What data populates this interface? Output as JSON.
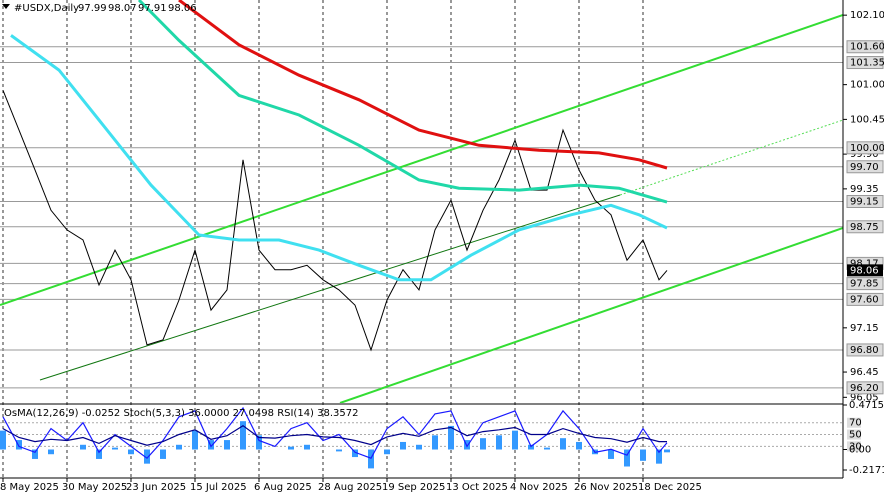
{
  "chart_data": [
    {
      "type": "line",
      "title": "#USDX,Daily",
      "ohlc": [
        97.99,
        98.07,
        97.91,
        98.06
      ],
      "xlim": [
        -0.75,
        210
      ],
      "ylim": [
        95.96,
        102.34
      ],
      "xticks": [
        {
          "value": 0,
          "label": "8 May 2025"
        },
        {
          "value": 16,
          "label": "30 May 2025"
        },
        {
          "value": 32,
          "label": "23 Jun 2025"
        },
        {
          "value": 48,
          "label": "15 Jul 2025"
        },
        {
          "value": 64,
          "label": "6 Aug 2025"
        },
        {
          "value": 80,
          "label": "28 Aug 2025"
        },
        {
          "value": 96,
          "label": "19 Sep 2025"
        },
        {
          "value": 112,
          "label": "13 Oct 2025"
        },
        {
          "value": 128,
          "label": "4 Nov 2025"
        },
        {
          "value": 144,
          "label": "26 Nov 2025"
        },
        {
          "value": 160,
          "label": "18 Dec 2025"
        }
      ],
      "yticks": [
        {
          "value": 102.1,
          "label": "102.10"
        },
        {
          "value": 101,
          "label": "101.00"
        },
        100.45,
        {
          "value": 99.9,
          "label": "99.90"
        },
        99.35,
        97.15,
        96.45,
        96.05
      ],
      "levels": [
        {
          "value": 101.6,
          "label": "101.60"
        },
        101.35,
        {
          "value": 100,
          "label": "100.00"
        },
        {
          "value": 99.7,
          "label": "99.70"
        },
        99.15,
        98.75,
        98.17,
        97.85,
        {
          "value": 97.6,
          "label": "97.60"
        },
        {
          "value": 96.8,
          "label": "96.80"
        },
        {
          "value": 96.2,
          "label": "96.20"
        }
      ],
      "last": 98.06,
      "series": [
        {
          "color": "#000000",
          "x": [
            0,
            4,
            8,
            12,
            16,
            20,
            24,
            28,
            32,
            36,
            40,
            44,
            48,
            52,
            56,
            60,
            64,
            68,
            72,
            76,
            80,
            84,
            88,
            92,
            96,
            100,
            104,
            108,
            112,
            116,
            120,
            124,
            128,
            132,
            136,
            140,
            144,
            148,
            152,
            156,
            160,
            164,
            166
          ],
          "values": [
            100.91,
            100.28,
            99.65,
            99.01,
            98.7,
            98.54,
            97.83,
            98.38,
            97.91,
            96.88,
            96.96,
            97.59,
            98.38,
            97.43,
            97.75,
            99.81,
            98.38,
            98.07,
            98.07,
            98.14,
            97.91,
            97.75,
            97.51,
            96.8,
            97.59,
            98.07,
            97.75,
            98.7,
            99.17,
            98.38,
            99.01,
            99.49,
            100.12,
            99.33,
            99.33,
            100.28,
            99.65,
            99.17,
            98.94,
            98.22,
            98.54,
            97.91,
            98.06
          ]
        },
        {
          "color": "#e01010",
          "x": [
            44,
            59,
            74,
            89,
            104,
            119,
            134,
            149,
            159,
            166
          ],
          "values": [
            102.34,
            101.63,
            101.15,
            100.76,
            100.28,
            100.04,
            99.96,
            99.92,
            99.81,
            99.68
          ]
        },
        {
          "color": "#20d8a8",
          "x": [
            34,
            44,
            59,
            74,
            89,
            104,
            114,
            129,
            144,
            154,
            166
          ],
          "values": [
            102.34,
            101.7,
            100.83,
            100.52,
            100.04,
            99.49,
            99.36,
            99.33,
            99.41,
            99.36,
            99.14
          ]
        },
        {
          "color": "#40e0f0",
          "x": [
            2,
            14,
            24,
            37,
            49,
            59,
            69,
            79,
            89,
            99,
            107,
            117,
            129,
            142,
            152,
            159,
            166
          ],
          "values": [
            101.78,
            101.23,
            100.44,
            99.41,
            98.62,
            98.54,
            98.54,
            98.38,
            98.14,
            97.91,
            97.91,
            98.3,
            98.7,
            98.94,
            99.09,
            98.94,
            98.73
          ]
        }
      ]
    },
    {
      "type": "oscillator",
      "title": "OsMA(12,26,9) -0.0252 Stoch(5,3,3) 36.0000 27.0498 RSI(14) 38.3572",
      "ylim": [
        -10,
        100
      ],
      "y2lim": [
        -0.2171,
        0.4715
      ],
      "yticks": [
        30,
        50,
        70
      ],
      "y2ticks": [
        0.4715,
        {
          "value": 0,
          "label": "0.00"
        },
        -0.2171
      ],
      "x": [
        0,
        4,
        8,
        12,
        16,
        20,
        24,
        28,
        32,
        36,
        40,
        44,
        48,
        52,
        56,
        60,
        64,
        68,
        72,
        76,
        80,
        84,
        88,
        92,
        96,
        100,
        104,
        108,
        112,
        116,
        120,
        124,
        128,
        132,
        136,
        140,
        144,
        148,
        152,
        156,
        160,
        164,
        166
      ],
      "series": [
        {
          "type": "histogram",
          "axis": "y2",
          "color": "#3399ff",
          "values": [
            0.2,
            0.1,
            -0.1,
            -0.05,
            0,
            0.05,
            -0.1,
            0.02,
            -0.05,
            -0.15,
            -0.1,
            0.05,
            0.2,
            0.1,
            0.1,
            0.3,
            0.15,
            0,
            0.03,
            0.05,
            0,
            -0.02,
            -0.08,
            -0.2,
            -0.05,
            0.08,
            0.05,
            0.15,
            0.25,
            0.1,
            0.12,
            0.15,
            0.2,
            0.05,
            0.02,
            0.12,
            0.08,
            -0.05,
            -0.1,
            -0.18,
            -0.12,
            -0.15,
            -0.03
          ]
        },
        {
          "type": "line",
          "color": "#1a1aff",
          "values": [
            80,
            30,
            20,
            60,
            40,
            70,
            20,
            50,
            30,
            10,
            40,
            80,
            90,
            30,
            60,
            95,
            40,
            30,
            60,
            70,
            40,
            50,
            20,
            10,
            60,
            80,
            50,
            85,
            90,
            30,
            70,
            80,
            90,
            30,
            50,
            90,
            60,
            20,
            25,
            15,
            60,
            20,
            36
          ]
        },
        {
          "type": "line",
          "color": "#00008b",
          "values": [
            60,
            45,
            38,
            42,
            40,
            45,
            35,
            48,
            40,
            32,
            38,
            50,
            58,
            42,
            48,
            65,
            45,
            44,
            48,
            50,
            46,
            45,
            40,
            33,
            46,
            52,
            47,
            58,
            62,
            48,
            55,
            58,
            62,
            50,
            50,
            60,
            52,
            45,
            43,
            37,
            45,
            38,
            38
          ]
        }
      ]
    }
  ]
}
